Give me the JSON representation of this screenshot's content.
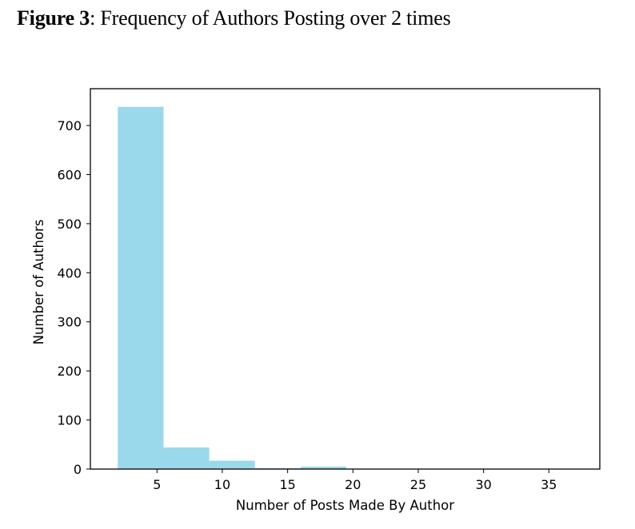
{
  "caption": {
    "label": "Figure 3",
    "text": ": Frequency of Authors Posting over 2 times"
  },
  "chart_data": {
    "type": "bar",
    "title": "",
    "xlabel": "Number of Posts Made By Author",
    "ylabel": "Number of Authors",
    "bin_edges": [
      2,
      5.5,
      9,
      12.5,
      16,
      19.5,
      23,
      26.5,
      30,
      33.5,
      37
    ],
    "values": [
      738,
      44,
      17,
      2,
      5,
      0,
      0,
      0,
      0,
      0
    ],
    "xlim": [
      -0.1,
      38.9
    ],
    "ylim": [
      0,
      775
    ],
    "xticks": [
      5,
      10,
      15,
      20,
      25,
      30,
      35
    ],
    "yticks": [
      0,
      100,
      200,
      300,
      400,
      500,
      600,
      700
    ],
    "bar_color": "#9AD8EC",
    "grid": false,
    "legend": "none"
  }
}
